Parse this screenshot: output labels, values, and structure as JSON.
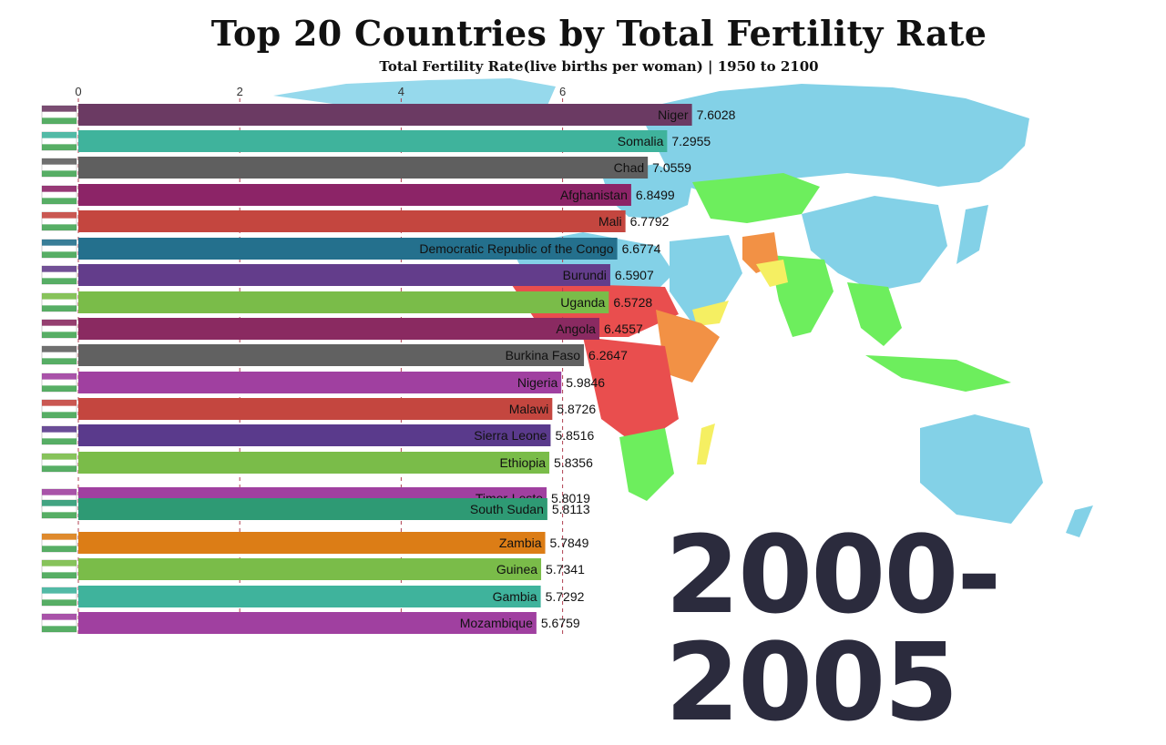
{
  "title": "Top 20 Countries by Total Fertility Rate",
  "subtitle": "Total Fertility Rate(live births per woman) | 1950 to 2100",
  "period": "2000-2005",
  "chart_data": {
    "type": "bar",
    "orientation": "horizontal",
    "xlim": [
      0,
      7.6028
    ],
    "xticks": [
      0,
      2,
      4,
      6
    ],
    "grid": "dashed vertical",
    "categories": [
      "Niger",
      "Somalia",
      "Chad",
      "Afghanistan",
      "Mali",
      "Democratic Republic of the Congo",
      "Burundi",
      "Uganda",
      "Angola",
      "Burkina Faso",
      "Nigeria",
      "Malawi",
      "Sierra Leone",
      "Ethiopia",
      "Timor-Leste",
      "South Sudan",
      "Zambia",
      "Guinea",
      "Gambia",
      "Mozambique"
    ],
    "values": [
      7.6028,
      7.2955,
      7.0559,
      6.8499,
      6.7792,
      6.6774,
      6.5907,
      6.5728,
      6.4557,
      6.2647,
      5.9846,
      5.8726,
      5.8516,
      5.8356,
      5.8019,
      5.8113,
      5.7849,
      5.7341,
      5.7292,
      5.6759
    ],
    "value_labels": [
      "7.6028",
      "7.2955",
      "7.0559",
      "6.8499",
      "6.7792",
      "6.6774",
      "6.5907",
      "6.5728",
      "6.4557",
      "6.2647",
      "5.9846",
      "5.8726",
      "5.8516",
      "5.8356",
      "5.8019",
      "5.8113",
      "5.7849",
      "5.7341",
      "5.7292",
      "5.6759"
    ],
    "colors": [
      "#6b3a63",
      "#3fb39c",
      "#5f5f5f",
      "#8c2467",
      "#c4463f",
      "#24708d",
      "#633d8b",
      "#7abc49",
      "#8a2a61",
      "#616161",
      "#a040a0",
      "#c4463f",
      "#5a3a8c",
      "#7abc49",
      "#a040a0",
      "#2e9a74",
      "#dc7d16",
      "#7abc49",
      "#3fb39c",
      "#a040a0"
    ]
  },
  "flags": [
    "flag-niger-icon",
    "flag-somalia-icon",
    "flag-chad-icon",
    "flag-afghanistan-icon",
    "flag-mali-icon",
    "flag-dr-congo-icon",
    "flag-burundi-icon",
    "flag-uganda-icon",
    "flag-angola-icon",
    "flag-burkina-faso-icon",
    "flag-nigeria-icon",
    "flag-malawi-icon",
    "flag-sierra-leone-icon",
    "flag-ethiopia-icon",
    "flag-timor-leste-icon",
    "flag-south-sudan-icon",
    "flag-zambia-icon",
    "flag-guinea-icon",
    "flag-gambia-icon",
    "flag-mozambique-icon"
  ],
  "map_colors": {
    "ocean_land_low": "#7dcfe6",
    "low": "#66ee55",
    "mid": "#f5ef5a",
    "high": "#f28c3c",
    "highest": "#e84545"
  }
}
